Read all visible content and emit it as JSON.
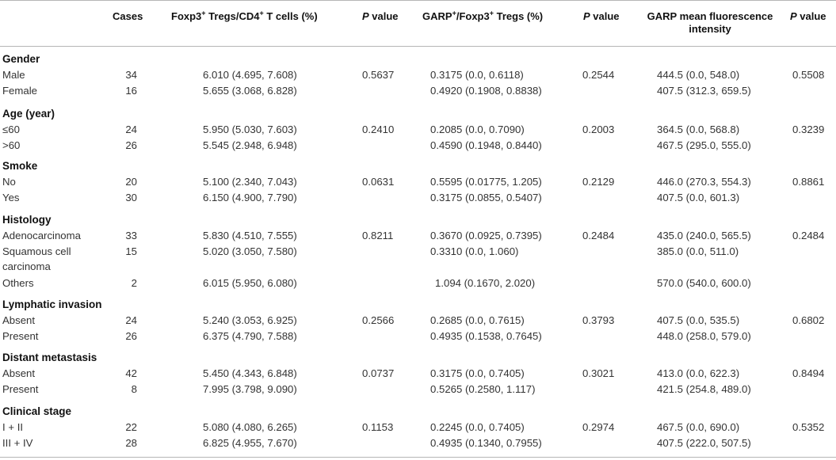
{
  "headers": {
    "cases": "Cases",
    "foxp3_pre": "Foxp3",
    "foxp3_sup": "+",
    "foxp3_mid": " Tregs/CD4",
    "foxp3_sup2": "+",
    "foxp3_post": " T cells (%)",
    "p_italic": "P",
    "p_rest": " value",
    "garp_pre": "GARP",
    "garp_sup": "+",
    "garp_mid": "/Foxp3",
    "garp_sup2": "+",
    "garp_post": " Tregs (%)",
    "mfi_line1": "GARP mean fluorescence",
    "mfi_line2": "intensity"
  },
  "sections": [
    {
      "title": "Gender",
      "rows": [
        {
          "label": "Male",
          "cases": "34",
          "foxp3": "6.010 (4.695, 7.608)",
          "p1": "0.5637",
          "garp": "0.3175 (0.0, 0.6118)",
          "p2": "0.2544",
          "mfi": "444.5 (0.0, 548.0)",
          "p3": "0.5508"
        },
        {
          "label": "Female",
          "cases": "16",
          "foxp3": "5.655 (3.068, 6.828)",
          "p1": "",
          "garp": "0.4920 (0.1908, 0.8838)",
          "p2": "",
          "mfi": "407.5 (312.3, 659.5)",
          "p3": ""
        }
      ]
    },
    {
      "title": "Age (year)",
      "rows": [
        {
          "label": "≤60",
          "cases": "24",
          "foxp3": "5.950 (5.030, 7.603)",
          "p1": "0.2410",
          "garp": "0.2085 (0.0, 0.7090)",
          "p2": "0.2003",
          "mfi": "364.5 (0.0, 568.8)",
          "p3": "0.3239"
        },
        {
          "label": ">60",
          "cases": "26",
          "foxp3": "5.545 (2.948, 6.948)",
          "p1": "",
          "garp": "0.4590 (0.1948, 0.8440)",
          "p2": "",
          "mfi": "467.5 (295.0, 555.0)",
          "p3": ""
        }
      ]
    },
    {
      "title": "Smoke",
      "rows": [
        {
          "label": "No",
          "cases": "20",
          "foxp3": "5.100 (2.340, 7.043)",
          "p1": "0.0631",
          "garp": "0.5595 (0.01775, 1.205)",
          "p2": "0.2129",
          "mfi": "446.0 (270.3, 554.3)",
          "p3": "0.8861"
        },
        {
          "label": "Yes",
          "cases": "30",
          "foxp3": "6.150 (4.900, 7.790)",
          "p1": "",
          "garp": "0.3175 (0.0855, 0.5407)",
          "p2": "",
          "mfi": "407.5 (0.0, 601.3)",
          "p3": ""
        }
      ]
    },
    {
      "title": "Histology",
      "rows": [
        {
          "label": "Adenocarcinoma",
          "cases": "33",
          "foxp3": "5.830 (4.510, 7.555)",
          "p1": "0.8211",
          "garp": "0.3670 (0.0925, 0.7395)",
          "p2": "0.2484",
          "mfi": "435.0 (240.0, 565.5)",
          "p3": "0.2484"
        },
        {
          "label": "Squamous cell",
          "label2": "carcinoma",
          "cases": "15",
          "foxp3": "5.020 (3.050, 7.580)",
          "p1": "",
          "garp": "0.3310 (0.0, 1.060)",
          "p2": "",
          "mfi": "385.0 (0.0, 511.0)",
          "p3": ""
        },
        {
          "label": "Others",
          "cases": "2",
          "foxp3": "6.015 (5.950, 6.080)",
          "p1": "",
          "garp": "1.094 (0.1670, 2.020)",
          "p2": "",
          "mfi": "570.0 (540.0, 600.0)",
          "p3": ""
        }
      ]
    },
    {
      "title": "Lymphatic invasion",
      "rows": [
        {
          "label": "Absent",
          "cases": "24",
          "foxp3": "5.240 (3.053, 6.925)",
          "p1": "0.2566",
          "garp": "0.2685 (0.0, 0.7615)",
          "p2": "0.3793",
          "mfi": "407.5 (0.0, 535.5)",
          "p3": "0.6802"
        },
        {
          "label": "Present",
          "cases": "26",
          "foxp3": "6.375 (4.790, 7.588)",
          "p1": "",
          "garp": "0.4935 (0.1538, 0.7645)",
          "p2": "",
          "mfi": "448.0 (258.0, 579.0)",
          "p3": ""
        }
      ]
    },
    {
      "title": "Distant metastasis",
      "rows": [
        {
          "label": "Absent",
          "cases": "42",
          "foxp3": "5.450 (4.343, 6.848)",
          "p1": "0.0737",
          "garp": "0.3175 (0.0, 0.7405)",
          "p2": "0.3021",
          "mfi": "413.0 (0.0, 622.3)",
          "p3": "0.8494"
        },
        {
          "label": "Present",
          "cases": "8",
          "foxp3": "7.995 (3.798, 9.090)",
          "p1": "",
          "garp": "0.5265 (0.2580, 1.117)",
          "p2": "",
          "mfi": "421.5 (254.8, 489.0)",
          "p3": ""
        }
      ]
    },
    {
      "title": "Clinical stage",
      "rows": [
        {
          "label": "I + II",
          "cases": "22",
          "foxp3": "5.080 (4.080, 6.265)",
          "p1": "0.1153",
          "garp": "0.2245 (0.0, 0.7405)",
          "p2": "0.2974",
          "mfi": "467.5 (0.0, 690.0)",
          "p3": "0.5352"
        },
        {
          "label": "III + IV",
          "cases": "28",
          "foxp3": "6.825 (4.955, 7.670)",
          "p1": "",
          "garp": "0.4935 (0.1340, 0.7955)",
          "p2": "",
          "mfi": "407.5 (222.0, 507.5)",
          "p3": ""
        }
      ]
    }
  ]
}
